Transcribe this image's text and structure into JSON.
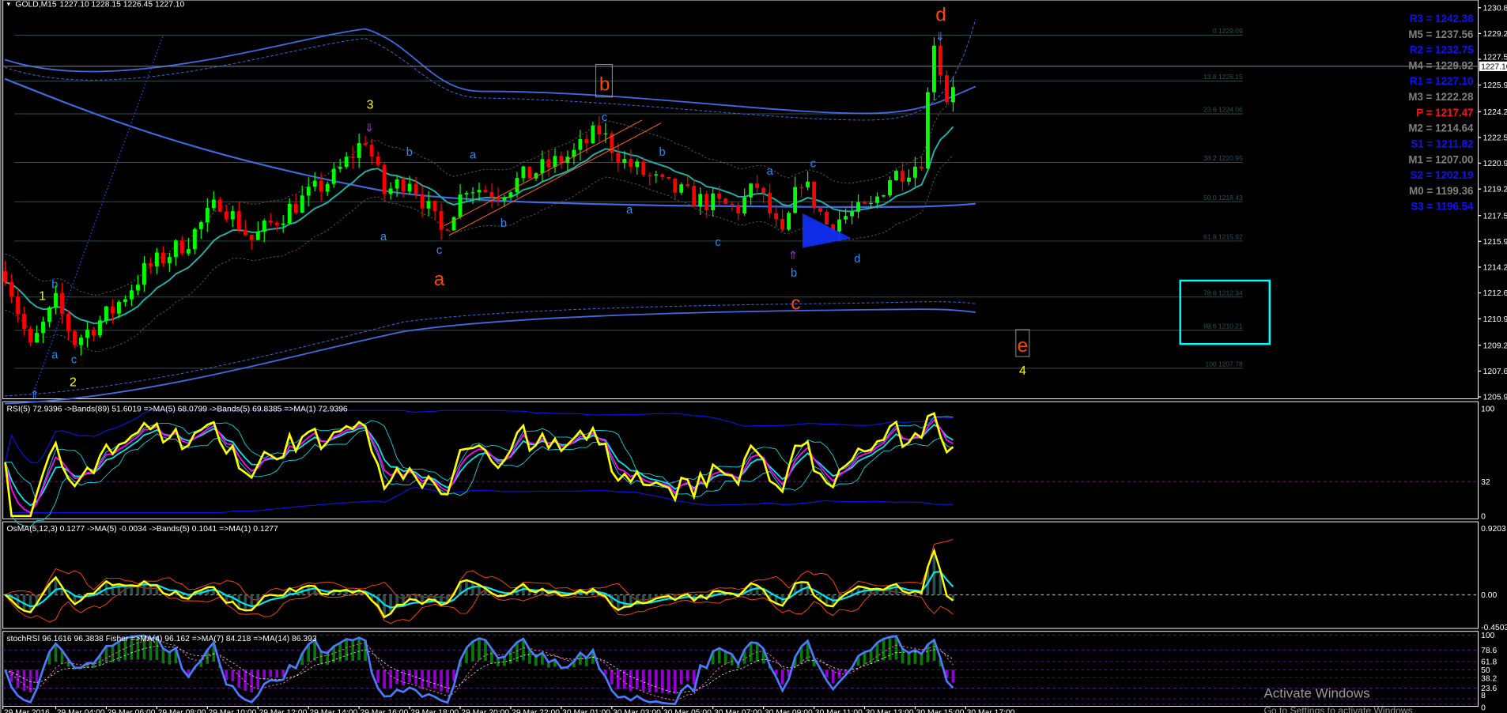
{
  "header": {
    "symbol": "GOLD,M15",
    "ohlc": "1227.10 1228.15 1226.45 1227.10"
  },
  "price_axis": {
    "ticks": [
      "1230.85",
      "1229.20",
      "1227.55",
      "1225.90",
      "1224.20",
      "1222.55",
      "1220.90",
      "1219.25",
      "1217.55",
      "1215.90",
      "1214.25",
      "1212.60",
      "1210.95",
      "1209.25",
      "1207.60",
      "1205.95"
    ],
    "current": "1227.10"
  },
  "fib_levels": [
    {
      "level": "0",
      "price": "1229.09",
      "label": "0 1229.09"
    },
    {
      "level": "13.8",
      "price": "1226.15",
      "label": "13.8 1226.15"
    },
    {
      "level": "23.6",
      "price": "1224.06",
      "label": "23.6 1224.06"
    },
    {
      "level": "38.2",
      "price": "1220.95",
      "label": "38.2 1220.95"
    },
    {
      "level": "50.0",
      "price": "1218.43",
      "label": "50.0 1218.43"
    },
    {
      "level": "61.8",
      "price": "1215.92",
      "label": "61.8 1215.92"
    },
    {
      "level": "78.6",
      "price": "1212.34",
      "label": "78.6 1212.34"
    },
    {
      "level": "88.6",
      "price": "1210.21",
      "label": "88.6 1210.21"
    },
    {
      "level": "100",
      "price": "1207.78",
      "label": "100 1207.78"
    }
  ],
  "pivots": [
    {
      "text": "R3 = 1242.38",
      "color": "#1010ff"
    },
    {
      "text": "M5 = 1237.56",
      "color": "#808080"
    },
    {
      "text": "R2 = 1232.75",
      "color": "#1010ff"
    },
    {
      "text": "M4 = 1229.92",
      "color": "#808080"
    },
    {
      "text": "R1 = 1227.10",
      "color": "#1010ff"
    },
    {
      "text": "M3 = 1222.28",
      "color": "#808080"
    },
    {
      "text": "P   = 1217.47",
      "color": "#ff1010"
    },
    {
      "text": "M2 = 1214.64",
      "color": "#808080"
    },
    {
      "text": "S1 = 1211.82",
      "color": "#1010ff"
    },
    {
      "text": "M1 = 1207.00",
      "color": "#808080"
    },
    {
      "text": "S2 = 1202.19",
      "color": "#1010ff"
    },
    {
      "text": "M0 = 1199.36",
      "color": "#808080"
    },
    {
      "text": "S3 = 1196.54",
      "color": "#1010ff"
    }
  ],
  "wave_labels": [
    "1",
    "2",
    "3",
    "4",
    "a",
    "b",
    "c",
    "d",
    "e",
    "b",
    "a",
    "c",
    "b",
    "a",
    "a",
    "c",
    "b",
    "c",
    "b",
    "a",
    "a",
    "c",
    "c",
    "b",
    "d"
  ],
  "indicators": {
    "rsi": {
      "header": "RSI(5) 72.9396  ->Bands(89) 51.6019  =>MA(5) 68.0799  ->Bands(5) 69.8385  =>MA(1) 72.9396",
      "axis": [
        "100",
        "32",
        "0"
      ]
    },
    "osma": {
      "header": "OsMA(5,12,3) 0.1277  ->MA(5) -0.0034  ->Bands(5) 0.1041  =>MA(1) 0.1277",
      "axis": [
        "0.9203",
        "0.00",
        "-0.4503"
      ]
    },
    "stoch": {
      "header": "stochRSI 96.1616 96.3838  Fisher  =>MA(4) 96.162  =>MA(7) 84.218  =>MA(14) 86.393",
      "axis": [
        "100",
        "78.6",
        "61.8",
        "50",
        "38.2",
        "23.6",
        "8",
        "0"
      ]
    }
  },
  "time_axis": [
    "29 Mar 2016",
    "29 Mar 04:00",
    "29 Mar 06:00",
    "29 Mar 08:00",
    "29 Mar 10:00",
    "29 Mar 12:00",
    "29 Mar 14:00",
    "29 Mar 16:00",
    "29 Mar 18:00",
    "29 Mar 20:00",
    "29 Mar 22:00",
    "30 Mar 01:00",
    "30 Mar 03:00",
    "30 Mar 05:00",
    "30 Mar 07:00",
    "30 Mar 09:00",
    "30 Mar 11:00",
    "30 Mar 13:00",
    "30 Mar 15:00",
    "30 Mar 17:00"
  ],
  "watermark": {
    "title": "Activate Windows",
    "subtitle": "Go to Settings to activate Windows."
  },
  "colors": {
    "bull": "#00ff00",
    "bear": "#ff0000",
    "ema": "#20b2aa",
    "ma_slow": "#4169e1",
    "rsi": "#ffff00",
    "rsi_ma": "#ff00ff",
    "bands": "#00e5ee",
    "box": "#00ffff"
  },
  "chart_data": {
    "type": "candlestick",
    "title": "GOLD,M15",
    "ylim": [
      1205.95,
      1230.85
    ],
    "price_path": [
      [
        "29 Mar 02:00",
        1214
      ],
      [
        "29 Mar 03:00",
        1209
      ],
      [
        "29 Mar 04:00",
        1212
      ],
      [
        "29 Mar 04:45",
        1209.5
      ],
      [
        "29 Mar 06:15",
        1211.5
      ],
      [
        "29 Mar 07:30",
        1214
      ],
      [
        "29 Mar 09:15",
        1216
      ],
      [
        "29 Mar 10:30",
        1218.5
      ],
      [
        "29 Mar 11:45",
        1216
      ],
      [
        "29 Mar 13:15",
        1218
      ],
      [
        "29 Mar 15:00",
        1220
      ],
      [
        "29 Mar 16:15",
        1222.5
      ],
      [
        "29 Mar 17:00",
        1219
      ],
      [
        "29 Mar 18:00",
        1220
      ],
      [
        "29 Mar 19:15",
        1216.5
      ],
      [
        "29 Mar 20:15",
        1219.5
      ],
      [
        "29 Mar 21:30",
        1219
      ],
      [
        "29 Mar 22:30",
        1220
      ],
      [
        "30 Mar 01:30",
        1221.5
      ],
      [
        "30 Mar 02:30",
        1223
      ],
      [
        "30 Mar 03:30",
        1221
      ],
      [
        "30 Mar 05:00",
        1219.5
      ],
      [
        "30 Mar 06:30",
        1218.5
      ],
      [
        "30 Mar 08:00",
        1218
      ],
      [
        "30 Mar 08:45",
        1219.5
      ],
      [
        "30 Mar 09:45",
        1216
      ],
      [
        "30 Mar 10:30",
        1220
      ],
      [
        "30 Mar 11:30",
        1217
      ],
      [
        "30 Mar 12:15",
        1217.5
      ],
      [
        "30 Mar 13:15",
        1218
      ],
      [
        "30 Mar 14:00",
        1220
      ],
      [
        "30 Mar 15:15",
        1221
      ],
      [
        "30 Mar 15:45",
        1229
      ],
      [
        "30 Mar 16:15",
        1225
      ],
      [
        "30 Mar 16:45",
        1227.1
      ]
    ]
  }
}
